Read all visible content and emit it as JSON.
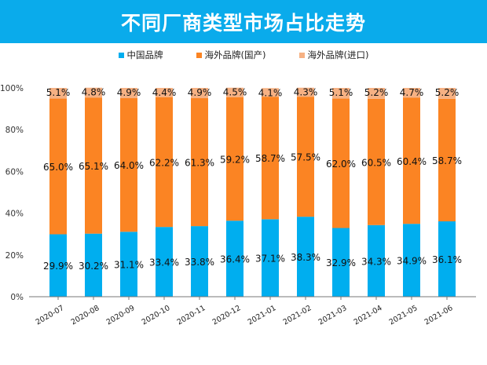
{
  "title": "不同厂商类型市场占比走势",
  "chart_data": {
    "type": "bar",
    "stacked": true,
    "title": "不同厂商类型市场占比走势",
    "categories": [
      "2020-07",
      "2020-08",
      "2020-09",
      "2020-10",
      "2020-11",
      "2020-12",
      "2021-01",
      "2021-02",
      "2021-03",
      "2021-04",
      "2021-05",
      "2021-06"
    ],
    "series": [
      {
        "name": "中国品牌",
        "color": "#00aeef",
        "values": [
          29.9,
          30.2,
          31.1,
          33.4,
          33.8,
          36.4,
          37.1,
          38.3,
          32.9,
          34.3,
          34.9,
          36.1
        ]
      },
      {
        "name": "海外品牌(国产)",
        "color": "#fb8423",
        "values": [
          65.0,
          65.1,
          64.0,
          62.2,
          61.3,
          59.2,
          58.7,
          57.5,
          62.0,
          60.5,
          60.4,
          58.7
        ]
      },
      {
        "name": "海外品牌(进口)",
        "color": "#f6b183",
        "values": [
          5.1,
          4.8,
          4.9,
          4.4,
          4.9,
          4.5,
          4.1,
          4.3,
          5.1,
          5.2,
          4.7,
          5.2
        ]
      }
    ],
    "yticks": [
      "0%",
      "20%",
      "40%",
      "60%",
      "80%",
      "100%"
    ],
    "ylim": [
      0,
      100
    ],
    "legend": "top",
    "grid": false
  }
}
